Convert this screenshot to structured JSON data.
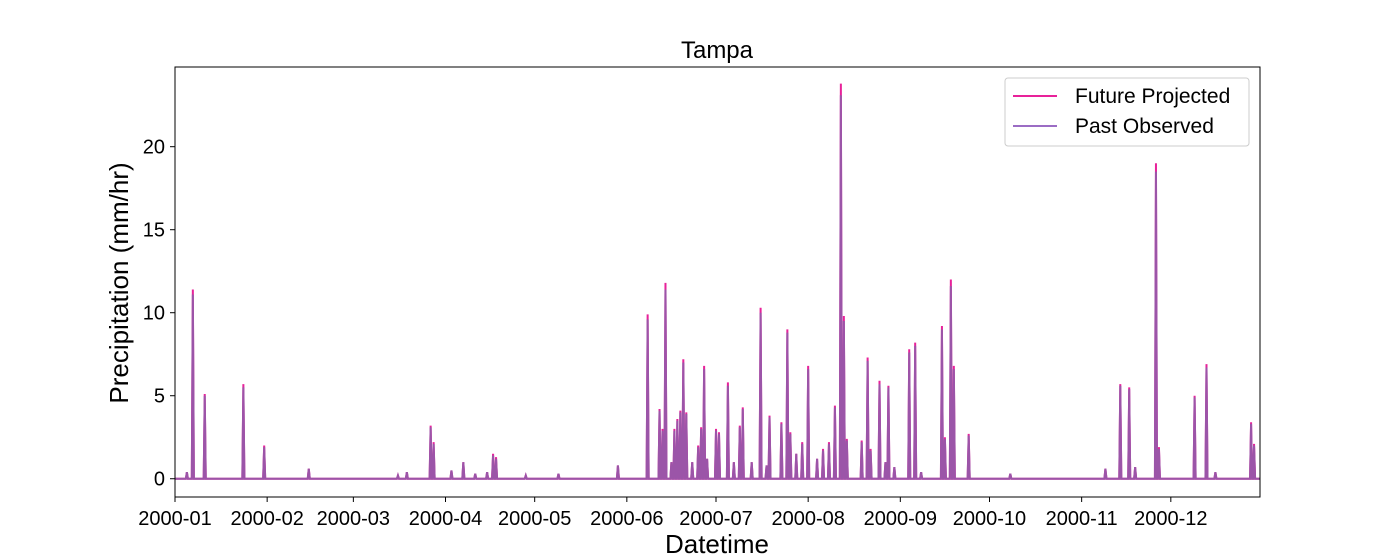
{
  "chart_data": {
    "type": "line",
    "title": "Tampa",
    "xlabel": "Datetime",
    "ylabel": "Precipitation (mm/hr)",
    "xlim": [
      "2000-01-01",
      "2000-12-31"
    ],
    "ylim": [
      -1.1,
      24.8
    ],
    "x_ticks": [
      "2000-01",
      "2000-02",
      "2000-03",
      "2000-04",
      "2000-05",
      "2000-06",
      "2000-07",
      "2000-08",
      "2000-09",
      "2000-10",
      "2000-11",
      "2000-12"
    ],
    "y_ticks": [
      0,
      5,
      10,
      15,
      20
    ],
    "legend_position": "top-right",
    "grid": false,
    "colors": {
      "future": "#e8229a",
      "past": "#9b6cc4",
      "overlap": "#9b55a8"
    },
    "series": [
      {
        "name": "Future Projected",
        "values": [
          [
            "2000-01-05",
            0.4
          ],
          [
            "2000-01-07",
            11.4
          ],
          [
            "2000-01-11",
            5.1
          ],
          [
            "2000-01-24",
            5.7
          ],
          [
            "2000-01-31",
            2.0
          ],
          [
            "2000-02-15",
            0.6
          ],
          [
            "2000-03-16",
            0.2
          ],
          [
            "2000-03-19",
            0.4
          ],
          [
            "2000-03-27",
            3.2
          ],
          [
            "2000-03-28",
            2.2
          ],
          [
            "2000-04-03",
            0.5
          ],
          [
            "2000-04-07",
            1.0
          ],
          [
            "2000-04-11",
            0.3
          ],
          [
            "2000-04-15",
            0.4
          ],
          [
            "2000-04-17",
            1.5
          ],
          [
            "2000-04-18",
            1.3
          ],
          [
            "2000-04-28",
            0.2
          ],
          [
            "2000-05-09",
            0.3
          ],
          [
            "2000-05-29",
            0.8
          ],
          [
            "2000-06-08",
            9.9
          ],
          [
            "2000-06-12",
            4.2
          ],
          [
            "2000-06-13",
            3.0
          ],
          [
            "2000-06-14",
            11.8
          ],
          [
            "2000-06-16",
            1.0
          ],
          [
            "2000-06-17",
            3.0
          ],
          [
            "2000-06-18",
            3.6
          ],
          [
            "2000-06-19",
            4.1
          ],
          [
            "2000-06-20",
            7.2
          ],
          [
            "2000-06-21",
            4.0
          ],
          [
            "2000-06-23",
            1.0
          ],
          [
            "2000-06-25",
            2.0
          ],
          [
            "2000-06-26",
            3.1
          ],
          [
            "2000-06-27",
            6.8
          ],
          [
            "2000-06-28",
            1.2
          ],
          [
            "2000-07-01",
            3.0
          ],
          [
            "2000-07-02",
            2.8
          ],
          [
            "2000-07-05",
            5.8
          ],
          [
            "2000-07-07",
            1.0
          ],
          [
            "2000-07-09",
            3.2
          ],
          [
            "2000-07-10",
            4.3
          ],
          [
            "2000-07-13",
            1.0
          ],
          [
            "2000-07-16",
            10.3
          ],
          [
            "2000-07-18",
            0.8
          ],
          [
            "2000-07-19",
            3.8
          ],
          [
            "2000-07-23",
            3.4
          ],
          [
            "2000-07-25",
            9.0
          ],
          [
            "2000-07-26",
            2.8
          ],
          [
            "2000-07-28",
            1.5
          ],
          [
            "2000-07-30",
            2.2
          ],
          [
            "2000-08-01",
            6.8
          ],
          [
            "2000-08-04",
            1.2
          ],
          [
            "2000-08-06",
            1.8
          ],
          [
            "2000-08-08",
            2.2
          ],
          [
            "2000-08-10",
            4.4
          ],
          [
            "2000-08-12",
            23.8
          ],
          [
            "2000-08-13",
            9.8
          ],
          [
            "2000-08-14",
            2.4
          ],
          [
            "2000-08-19",
            2.3
          ],
          [
            "2000-08-21",
            7.3
          ],
          [
            "2000-08-22",
            1.8
          ],
          [
            "2000-08-25",
            5.9
          ],
          [
            "2000-08-27",
            1.0
          ],
          [
            "2000-08-28",
            5.6
          ],
          [
            "2000-08-30",
            0.7
          ],
          [
            "2000-09-04",
            7.8
          ],
          [
            "2000-09-06",
            8.2
          ],
          [
            "2000-09-08",
            0.4
          ],
          [
            "2000-09-15",
            9.2
          ],
          [
            "2000-09-16",
            2.5
          ],
          [
            "2000-09-18",
            12.0
          ],
          [
            "2000-09-19",
            6.8
          ],
          [
            "2000-09-24",
            2.7
          ],
          [
            "2000-10-08",
            0.3
          ],
          [
            "2000-11-09",
            0.6
          ],
          [
            "2000-11-14",
            5.7
          ],
          [
            "2000-11-17",
            5.5
          ],
          [
            "2000-11-19",
            0.7
          ],
          [
            "2000-11-26",
            19.0
          ],
          [
            "2000-11-27",
            1.9
          ],
          [
            "2000-12-09",
            5.0
          ],
          [
            "2000-12-13",
            6.9
          ],
          [
            "2000-12-16",
            0.4
          ],
          [
            "2000-12-28",
            3.4
          ],
          [
            "2000-12-29",
            2.1
          ]
        ]
      },
      {
        "name": "Past Observed",
        "values": [
          [
            "2000-01-05",
            0.4
          ],
          [
            "2000-01-07",
            11.1
          ],
          [
            "2000-01-11",
            5.0
          ],
          [
            "2000-01-24",
            5.5
          ],
          [
            "2000-01-31",
            1.9
          ],
          [
            "2000-02-15",
            0.6
          ],
          [
            "2000-03-16",
            0.2
          ],
          [
            "2000-03-19",
            0.4
          ],
          [
            "2000-03-27",
            3.1
          ],
          [
            "2000-03-28",
            2.1
          ],
          [
            "2000-04-03",
            0.5
          ],
          [
            "2000-04-07",
            1.0
          ],
          [
            "2000-04-11",
            0.3
          ],
          [
            "2000-04-15",
            0.4
          ],
          [
            "2000-04-17",
            1.4
          ],
          [
            "2000-04-18",
            1.2
          ],
          [
            "2000-04-28",
            0.2
          ],
          [
            "2000-05-09",
            0.3
          ],
          [
            "2000-05-29",
            0.8
          ],
          [
            "2000-06-08",
            9.6
          ],
          [
            "2000-06-12",
            4.1
          ],
          [
            "2000-06-13",
            2.9
          ],
          [
            "2000-06-14",
            11.4
          ],
          [
            "2000-06-16",
            1.0
          ],
          [
            "2000-06-17",
            2.9
          ],
          [
            "2000-06-18",
            3.5
          ],
          [
            "2000-06-19",
            4.0
          ],
          [
            "2000-06-20",
            7.0
          ],
          [
            "2000-06-21",
            3.9
          ],
          [
            "2000-06-23",
            1.0
          ],
          [
            "2000-06-25",
            1.9
          ],
          [
            "2000-06-26",
            3.0
          ],
          [
            "2000-06-27",
            6.6
          ],
          [
            "2000-06-28",
            1.2
          ],
          [
            "2000-07-01",
            2.9
          ],
          [
            "2000-07-02",
            2.7
          ],
          [
            "2000-07-05",
            5.6
          ],
          [
            "2000-07-07",
            1.0
          ],
          [
            "2000-07-09",
            3.1
          ],
          [
            "2000-07-10",
            4.2
          ],
          [
            "2000-07-13",
            1.0
          ],
          [
            "2000-07-16",
            10.0
          ],
          [
            "2000-07-18",
            0.8
          ],
          [
            "2000-07-19",
            3.7
          ],
          [
            "2000-07-23",
            3.3
          ],
          [
            "2000-07-25",
            8.8
          ],
          [
            "2000-07-26",
            2.7
          ],
          [
            "2000-07-28",
            1.5
          ],
          [
            "2000-07-30",
            2.1
          ],
          [
            "2000-08-01",
            6.6
          ],
          [
            "2000-08-04",
            1.2
          ],
          [
            "2000-08-06",
            1.7
          ],
          [
            "2000-08-08",
            2.1
          ],
          [
            "2000-08-10",
            4.3
          ],
          [
            "2000-08-12",
            23.1
          ],
          [
            "2000-08-13",
            9.5
          ],
          [
            "2000-08-14",
            2.3
          ],
          [
            "2000-08-19",
            2.2
          ],
          [
            "2000-08-21",
            7.1
          ],
          [
            "2000-08-22",
            1.7
          ],
          [
            "2000-08-25",
            5.7
          ],
          [
            "2000-08-27",
            1.0
          ],
          [
            "2000-08-28",
            5.5
          ],
          [
            "2000-08-30",
            0.7
          ],
          [
            "2000-09-04",
            7.6
          ],
          [
            "2000-09-06",
            8.0
          ],
          [
            "2000-09-08",
            0.4
          ],
          [
            "2000-09-15",
            9.0
          ],
          [
            "2000-09-16",
            2.4
          ],
          [
            "2000-09-18",
            11.6
          ],
          [
            "2000-09-19",
            6.6
          ],
          [
            "2000-09-24",
            2.6
          ],
          [
            "2000-10-08",
            0.3
          ],
          [
            "2000-11-09",
            0.6
          ],
          [
            "2000-11-14",
            5.6
          ],
          [
            "2000-11-17",
            5.4
          ],
          [
            "2000-11-19",
            0.7
          ],
          [
            "2000-11-26",
            18.5
          ],
          [
            "2000-11-27",
            1.8
          ],
          [
            "2000-12-09",
            4.9
          ],
          [
            "2000-12-13",
            6.7
          ],
          [
            "2000-12-16",
            0.4
          ],
          [
            "2000-12-28",
            3.3
          ],
          [
            "2000-12-29",
            2.0
          ]
        ]
      }
    ]
  }
}
